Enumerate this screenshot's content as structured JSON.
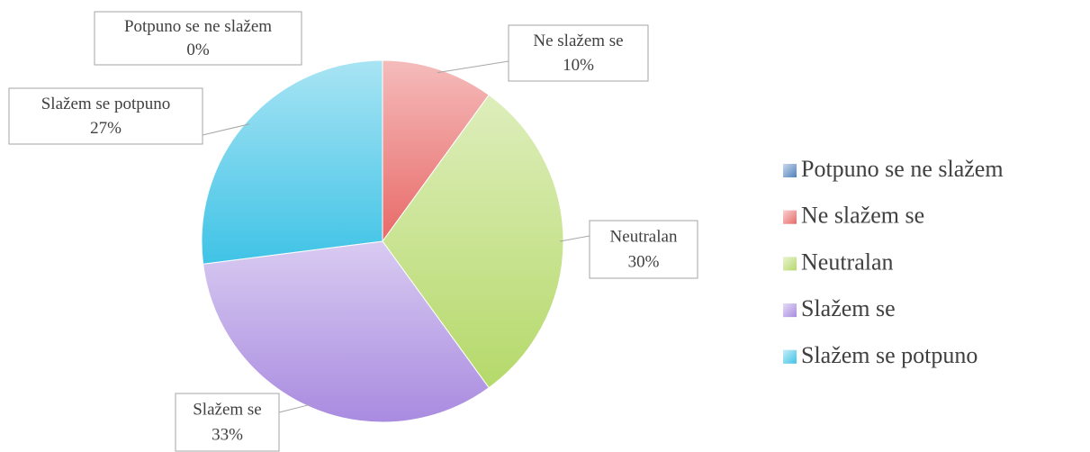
{
  "chart_data": {
    "type": "pie",
    "categories": [
      "Potpuno se ne slažem",
      "Ne slažem se",
      "Neutralan",
      "Slažem se",
      "Slažem se potpuno"
    ],
    "values": [
      0,
      10,
      30,
      33,
      27
    ],
    "value_labels": [
      "0%",
      "10%",
      "30%",
      "33%",
      "27%"
    ],
    "colors": [
      "#4f81bd",
      "#e86a68",
      "#b5d96a",
      "#a98be0",
      "#3fc3e6"
    ],
    "legend": "right"
  }
}
